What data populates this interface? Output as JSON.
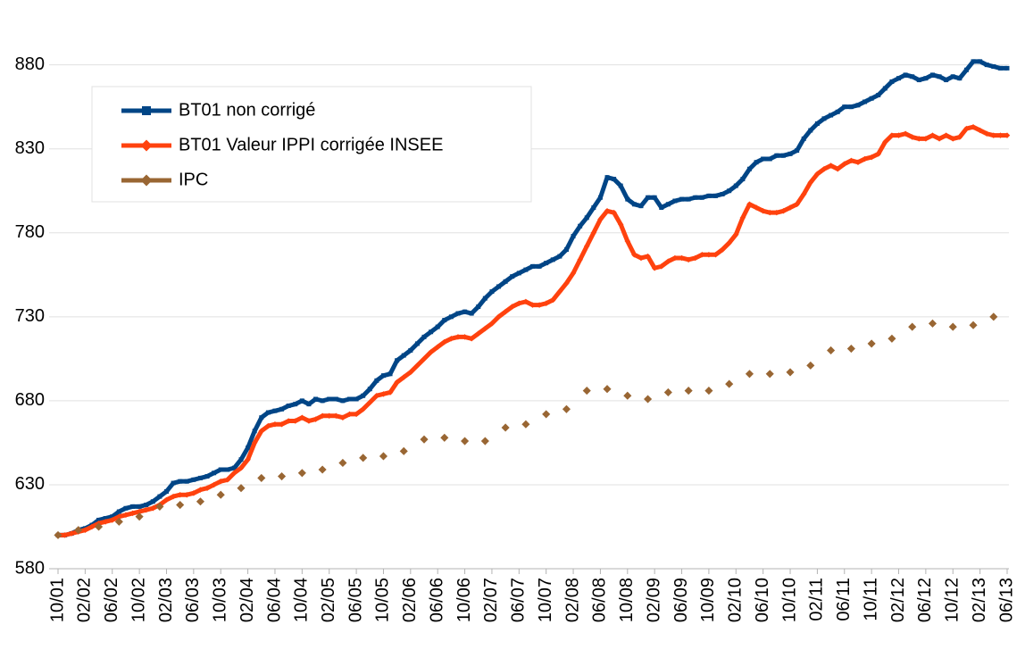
{
  "chart_data": {
    "type": "line",
    "categories": [
      "10/01",
      null,
      null,
      null,
      "02/02",
      null,
      null,
      null,
      "06/02",
      null,
      null,
      null,
      "10/02",
      null,
      null,
      null,
      "02/03",
      null,
      null,
      null,
      "06/03",
      null,
      null,
      null,
      "10/03",
      null,
      null,
      null,
      "02/04",
      null,
      null,
      null,
      "06/04",
      null,
      null,
      null,
      "10/04",
      null,
      null,
      null,
      "02/05",
      null,
      null,
      null,
      "06/05",
      null,
      null,
      null,
      "10/05",
      null,
      null,
      null,
      "02/06",
      null,
      null,
      null,
      "06/06",
      null,
      null,
      null,
      "10/06",
      null,
      null,
      null,
      "02/07",
      null,
      null,
      null,
      "06/07",
      null,
      null,
      null,
      "10/07",
      null,
      null,
      null,
      "02/08",
      null,
      null,
      null,
      "06/08",
      null,
      null,
      null,
      "10/08",
      null,
      null,
      null,
      "02/09",
      null,
      null,
      null,
      "06/09",
      null,
      null,
      null,
      "10/09",
      null,
      null,
      null,
      "02/10",
      null,
      null,
      null,
      "06/10",
      null,
      null,
      null,
      "10/10",
      null,
      null,
      null,
      "02/11",
      null,
      null,
      null,
      "06/11",
      null,
      null,
      null,
      "10/11",
      null,
      null,
      null,
      "02/12",
      null,
      null,
      null,
      "06/12",
      null,
      null,
      null,
      "10/12",
      null,
      null,
      null,
      "02/13",
      null,
      null,
      null,
      "06/13"
    ],
    "series": [
      {
        "name": "BT01 non corrigé",
        "color": "#004586",
        "marker": "square",
        "values": [
          600,
          600,
          601,
          603,
          604,
          606,
          609,
          610,
          611,
          614,
          616,
          617,
          617,
          618,
          620,
          623,
          626,
          631,
          632,
          632,
          633,
          634,
          635,
          637,
          639,
          639,
          640,
          645,
          652,
          662,
          670,
          673,
          674,
          675,
          677,
          678,
          680,
          678,
          681,
          680,
          681,
          681,
          680,
          681,
          681,
          683,
          687,
          692,
          695,
          696,
          704,
          707,
          710,
          714,
          718,
          721,
          724,
          728,
          730,
          732,
          733,
          732,
          736,
          741,
          745,
          748,
          751,
          754,
          756,
          758,
          760,
          760,
          762,
          764,
          766,
          770,
          778,
          784,
          789,
          795,
          801,
          813,
          812,
          808,
          800,
          797,
          796,
          801,
          801,
          795,
          797,
          799,
          800,
          800,
          801,
          801,
          802,
          802,
          803,
          805,
          808,
          812,
          818,
          822,
          824,
          824,
          826,
          826,
          827,
          829,
          836,
          841,
          845,
          848,
          850,
          852,
          855,
          855,
          856,
          858,
          860,
          862,
          866,
          870,
          872,
          874,
          873,
          871,
          872,
          874,
          873,
          871,
          873,
          872,
          877,
          882,
          882,
          880,
          879,
          878,
          878
        ]
      },
      {
        "name": "BT01 Valeur IPPI corrigée INSEE",
        "color": "#ff420e",
        "marker": "diamond",
        "values": [
          600,
          600,
          601,
          602,
          603,
          605,
          607,
          608,
          609,
          611,
          612,
          613,
          614,
          615,
          616,
          618,
          621,
          623,
          624,
          624,
          625,
          627,
          628,
          630,
          632,
          633,
          637,
          640,
          645,
          655,
          662,
          665,
          666,
          666,
          668,
          668,
          670,
          668,
          669,
          671,
          671,
          671,
          670,
          672,
          672,
          675,
          679,
          683,
          684,
          685,
          691,
          694,
          697,
          701,
          705,
          709,
          712,
          715,
          717,
          718,
          718,
          717,
          720,
          723,
          726,
          730,
          733,
          736,
          738,
          739,
          737,
          737,
          738,
          740,
          745,
          750,
          756,
          764,
          772,
          780,
          788,
          793,
          792,
          785,
          775,
          767,
          765,
          766,
          759,
          760,
          763,
          765,
          765,
          764,
          765,
          767,
          767,
          767,
          770,
          774,
          779,
          789,
          797,
          795,
          793,
          792,
          792,
          793,
          795,
          797,
          803,
          810,
          815,
          818,
          820,
          818,
          821,
          823,
          822,
          824,
          825,
          827,
          834,
          838,
          838,
          839,
          837,
          836,
          836,
          838,
          836,
          838,
          836,
          837,
          842,
          843,
          841,
          839,
          838,
          838,
          838
        ]
      },
      {
        "name": "IPC",
        "color": "#996633",
        "marker": "diamond",
        "values": [
          600,
          null,
          null,
          603,
          null,
          null,
          605,
          null,
          null,
          608,
          null,
          null,
          611,
          null,
          null,
          617,
          null,
          null,
          618,
          null,
          null,
          620,
          null,
          null,
          624,
          null,
          null,
          628,
          null,
          null,
          634,
          null,
          null,
          635,
          null,
          null,
          637,
          null,
          null,
          639,
          null,
          null,
          643,
          null,
          null,
          646,
          null,
          null,
          647,
          null,
          null,
          650,
          null,
          null,
          657,
          null,
          null,
          658,
          null,
          null,
          656,
          null,
          null,
          656,
          null,
          null,
          664,
          null,
          null,
          666,
          null,
          null,
          672,
          null,
          null,
          675,
          null,
          null,
          686,
          null,
          null,
          687,
          null,
          null,
          683,
          null,
          null,
          681,
          null,
          null,
          685,
          null,
          null,
          686,
          null,
          null,
          686,
          null,
          null,
          690,
          null,
          null,
          696,
          null,
          null,
          696,
          null,
          null,
          697,
          null,
          null,
          701,
          null,
          null,
          710,
          null,
          null,
          711,
          null,
          null,
          714,
          null,
          null,
          717,
          null,
          null,
          724,
          null,
          null,
          726,
          null,
          null,
          724,
          null,
          null,
          725,
          null,
          null,
          730,
          null,
          null
        ]
      }
    ],
    "ylim": [
      580,
      900
    ],
    "yticks": [
      580,
      630,
      680,
      730,
      780,
      830,
      880
    ],
    "grid": true,
    "legend": "top-left"
  }
}
